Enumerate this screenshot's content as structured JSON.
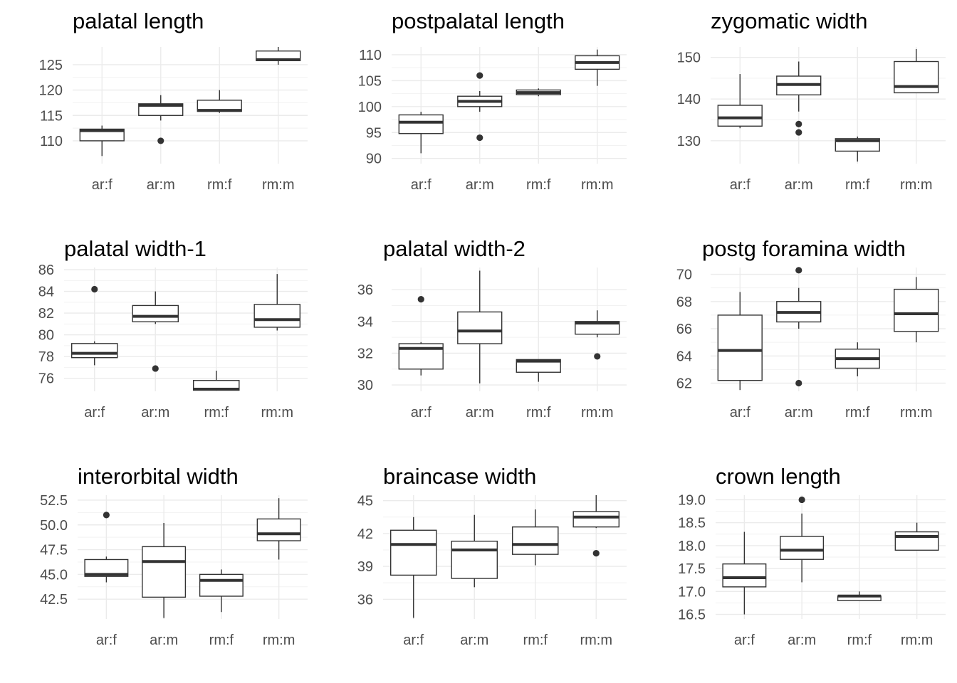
{
  "chart_data": [
    {
      "type": "box",
      "title": "palatal length",
      "categories": [
        "ar:f",
        "ar:m",
        "rm:f",
        "rm:m"
      ],
      "yticks": [
        110,
        115,
        120,
        125
      ],
      "ylim": [
        105.5,
        128.5
      ],
      "boxes": [
        {
          "category": "ar:f",
          "whisker_low": 107,
          "q1": 110,
          "median": 112,
          "q3": 112.3,
          "whisker_high": 113,
          "outliers": []
        },
        {
          "category": "ar:m",
          "whisker_low": 114,
          "q1": 115,
          "median": 117,
          "q3": 117.3,
          "whisker_high": 119,
          "outliers": [
            110
          ]
        },
        {
          "category": "rm:f",
          "whisker_low": 115.5,
          "q1": 115.8,
          "median": 116,
          "q3": 118,
          "whisker_high": 120,
          "outliers": []
        },
        {
          "category": "rm:m",
          "whisker_low": 125,
          "q1": 125.8,
          "median": 126,
          "q3": 127.7,
          "whisker_high": 128.5,
          "outliers": []
        }
      ]
    },
    {
      "type": "box",
      "title": "postpalatal length",
      "categories": [
        "ar:f",
        "ar:m",
        "rm:f",
        "rm:m"
      ],
      "yticks": [
        90,
        95,
        100,
        105,
        110
      ],
      "ylim": [
        89,
        111.5
      ],
      "boxes": [
        {
          "category": "ar:f",
          "whisker_low": 91,
          "q1": 94.8,
          "median": 97,
          "q3": 98.4,
          "whisker_high": 99,
          "outliers": []
        },
        {
          "category": "ar:m",
          "whisker_low": 99,
          "q1": 100,
          "median": 101,
          "q3": 102,
          "whisker_high": 103,
          "outliers": [
            94,
            106
          ]
        },
        {
          "category": "rm:f",
          "whisker_low": 102,
          "q1": 102.3,
          "median": 102.7,
          "q3": 103.2,
          "whisker_high": 103.5,
          "outliers": []
        },
        {
          "category": "rm:m",
          "whisker_low": 104,
          "q1": 107.2,
          "median": 108.5,
          "q3": 109.8,
          "whisker_high": 111,
          "outliers": []
        }
      ]
    },
    {
      "type": "box",
      "title": "zygomatic width",
      "categories": [
        "ar:f",
        "ar:m",
        "rm:f",
        "rm:m"
      ],
      "yticks": [
        130,
        140,
        150
      ],
      "ylim": [
        124.5,
        152.5
      ],
      "boxes": [
        {
          "category": "ar:f",
          "whisker_low": 133,
          "q1": 133.5,
          "median": 135.5,
          "q3": 138.5,
          "whisker_high": 146,
          "outliers": []
        },
        {
          "category": "ar:m",
          "whisker_low": 137,
          "q1": 141,
          "median": 143.5,
          "q3": 145.5,
          "whisker_high": 149,
          "outliers": [
            134,
            132
          ]
        },
        {
          "category": "rm:f",
          "whisker_low": 125,
          "q1": 127.5,
          "median": 130,
          "q3": 130.5,
          "whisker_high": 131,
          "outliers": []
        },
        {
          "category": "rm:m",
          "whisker_low": 141.5,
          "q1": 141.5,
          "median": 143,
          "q3": 149,
          "whisker_high": 152,
          "outliers": []
        }
      ]
    },
    {
      "type": "box",
      "title": "palatal width-1",
      "categories": [
        "ar:f",
        "ar:m",
        "rm:f",
        "rm:m"
      ],
      "yticks": [
        76,
        78,
        80,
        82,
        84,
        86
      ],
      "ylim": [
        74.8,
        86.2
      ],
      "boxes": [
        {
          "category": "ar:f",
          "whisker_low": 77.2,
          "q1": 77.9,
          "median": 78.3,
          "q3": 79.2,
          "whisker_high": 79.4,
          "outliers": [
            84.2
          ]
        },
        {
          "category": "ar:m",
          "whisker_low": 81,
          "q1": 81.2,
          "median": 81.7,
          "q3": 82.7,
          "whisker_high": 84,
          "outliers": [
            76.9
          ]
        },
        {
          "category": "rm:f",
          "whisker_low": 74.9,
          "q1": 74.9,
          "median": 75,
          "q3": 75.8,
          "whisker_high": 76.7,
          "outliers": []
        },
        {
          "category": "rm:m",
          "whisker_low": 80.4,
          "q1": 80.7,
          "median": 81.4,
          "q3": 82.8,
          "whisker_high": 85.6,
          "outliers": []
        }
      ]
    },
    {
      "type": "box",
      "title": "palatal width-2",
      "categories": [
        "ar:f",
        "ar:m",
        "rm:f",
        "rm:m"
      ],
      "yticks": [
        30,
        32,
        34,
        36
      ],
      "ylim": [
        29.6,
        37.4
      ],
      "boxes": [
        {
          "category": "ar:f",
          "whisker_low": 30.6,
          "q1": 31,
          "median": 32.3,
          "q3": 32.6,
          "whisker_high": 32.7,
          "outliers": [
            35.4
          ]
        },
        {
          "category": "ar:m",
          "whisker_low": 30.1,
          "q1": 32.6,
          "median": 33.4,
          "q3": 34.6,
          "whisker_high": 37.2,
          "outliers": []
        },
        {
          "category": "rm:f",
          "whisker_low": 30.2,
          "q1": 30.8,
          "median": 31.5,
          "q3": 31.6,
          "whisker_high": 31.6,
          "outliers": []
        },
        {
          "category": "rm:m",
          "whisker_low": 33,
          "q1": 33.2,
          "median": 33.9,
          "q3": 34,
          "whisker_high": 34.7,
          "outliers": [
            31.8
          ]
        }
      ]
    },
    {
      "type": "box",
      "title": "postg foramina width",
      "categories": [
        "ar:f",
        "ar:m",
        "rm:f",
        "rm:m"
      ],
      "yticks": [
        62,
        64,
        66,
        68,
        70
      ],
      "ylim": [
        61.4,
        70.5
      ],
      "boxes": [
        {
          "category": "ar:f",
          "whisker_low": 61.5,
          "q1": 62.2,
          "median": 64.4,
          "q3": 67,
          "whisker_high": 68.7,
          "outliers": []
        },
        {
          "category": "ar:m",
          "whisker_low": 66,
          "q1": 66.5,
          "median": 67.2,
          "q3": 68,
          "whisker_high": 69,
          "outliers": [
            70.3,
            62
          ]
        },
        {
          "category": "rm:f",
          "whisker_low": 62.5,
          "q1": 63.1,
          "median": 63.8,
          "q3": 64.5,
          "whisker_high": 65,
          "outliers": []
        },
        {
          "category": "rm:m",
          "whisker_low": 65,
          "q1": 65.8,
          "median": 67.1,
          "q3": 68.9,
          "whisker_high": 69.8,
          "outliers": []
        }
      ]
    },
    {
      "type": "box",
      "title": "interorbital width",
      "categories": [
        "ar:f",
        "ar:m",
        "rm:f",
        "rm:m"
      ],
      "yticks": [
        42.5,
        45.0,
        47.5,
        50.0,
        52.5
      ],
      "ytick_labels": [
        "42.5",
        "45.0",
        "47.5",
        "50.0",
        "52.5"
      ],
      "ylim": [
        40.5,
        53.0
      ],
      "boxes": [
        {
          "category": "ar:f",
          "whisker_low": 44.2,
          "q1": 44.8,
          "median": 45,
          "q3": 46.5,
          "whisker_high": 46.8,
          "outliers": [
            51
          ]
        },
        {
          "category": "ar:m",
          "whisker_low": 40.6,
          "q1": 42.7,
          "median": 46.3,
          "q3": 47.8,
          "whisker_high": 50.2,
          "outliers": []
        },
        {
          "category": "rm:f",
          "whisker_low": 41.2,
          "q1": 42.8,
          "median": 44.4,
          "q3": 45,
          "whisker_high": 45.5,
          "outliers": []
        },
        {
          "category": "rm:m",
          "whisker_low": 46.5,
          "q1": 48.4,
          "median": 49.1,
          "q3": 50.6,
          "whisker_high": 52.7,
          "outliers": []
        }
      ]
    },
    {
      "type": "box",
      "title": "braincase width",
      "categories": [
        "ar:f",
        "ar:m",
        "rm:f",
        "rm:m"
      ],
      "yticks": [
        36,
        39,
        42,
        45
      ],
      "ylim": [
        34.2,
        45.5
      ],
      "boxes": [
        {
          "category": "ar:f",
          "whisker_low": 34.3,
          "q1": 38.2,
          "median": 41,
          "q3": 42.3,
          "whisker_high": 43.5,
          "outliers": []
        },
        {
          "category": "ar:m",
          "whisker_low": 37.1,
          "q1": 37.9,
          "median": 40.5,
          "q3": 41.3,
          "whisker_high": 43.7,
          "outliers": []
        },
        {
          "category": "rm:f",
          "whisker_low": 39.1,
          "q1": 40.1,
          "median": 41,
          "q3": 42.6,
          "whisker_high": 44.2,
          "outliers": []
        },
        {
          "category": "rm:m",
          "whisker_low": 42.5,
          "q1": 42.6,
          "median": 43.5,
          "q3": 44,
          "whisker_high": 45.5,
          "outliers": [
            40.2
          ]
        }
      ]
    },
    {
      "type": "box",
      "title": "crown length",
      "categories": [
        "ar:f",
        "ar:m",
        "rm:f",
        "rm:m"
      ],
      "yticks": [
        16.5,
        17.0,
        17.5,
        18.0,
        18.5,
        19.0
      ],
      "ytick_labels": [
        "16.5",
        "17.0",
        "17.5",
        "18.0",
        "18.5",
        "19.0"
      ],
      "ylim": [
        16.4,
        19.1
      ],
      "boxes": [
        {
          "category": "ar:f",
          "whisker_low": 16.5,
          "q1": 17.1,
          "median": 17.3,
          "q3": 17.6,
          "whisker_high": 18.3,
          "outliers": []
        },
        {
          "category": "ar:m",
          "whisker_low": 17.2,
          "q1": 17.7,
          "median": 17.9,
          "q3": 18.2,
          "whisker_high": 18.7,
          "outliers": [
            19
          ]
        },
        {
          "category": "rm:f",
          "whisker_low": 16.8,
          "q1": 16.8,
          "median": 16.9,
          "q3": 16.9,
          "whisker_high": 17,
          "outliers": []
        },
        {
          "category": "rm:m",
          "whisker_low": 17.9,
          "q1": 17.9,
          "median": 18.2,
          "q3": 18.3,
          "whisker_high": 18.5,
          "outliers": []
        }
      ]
    }
  ]
}
